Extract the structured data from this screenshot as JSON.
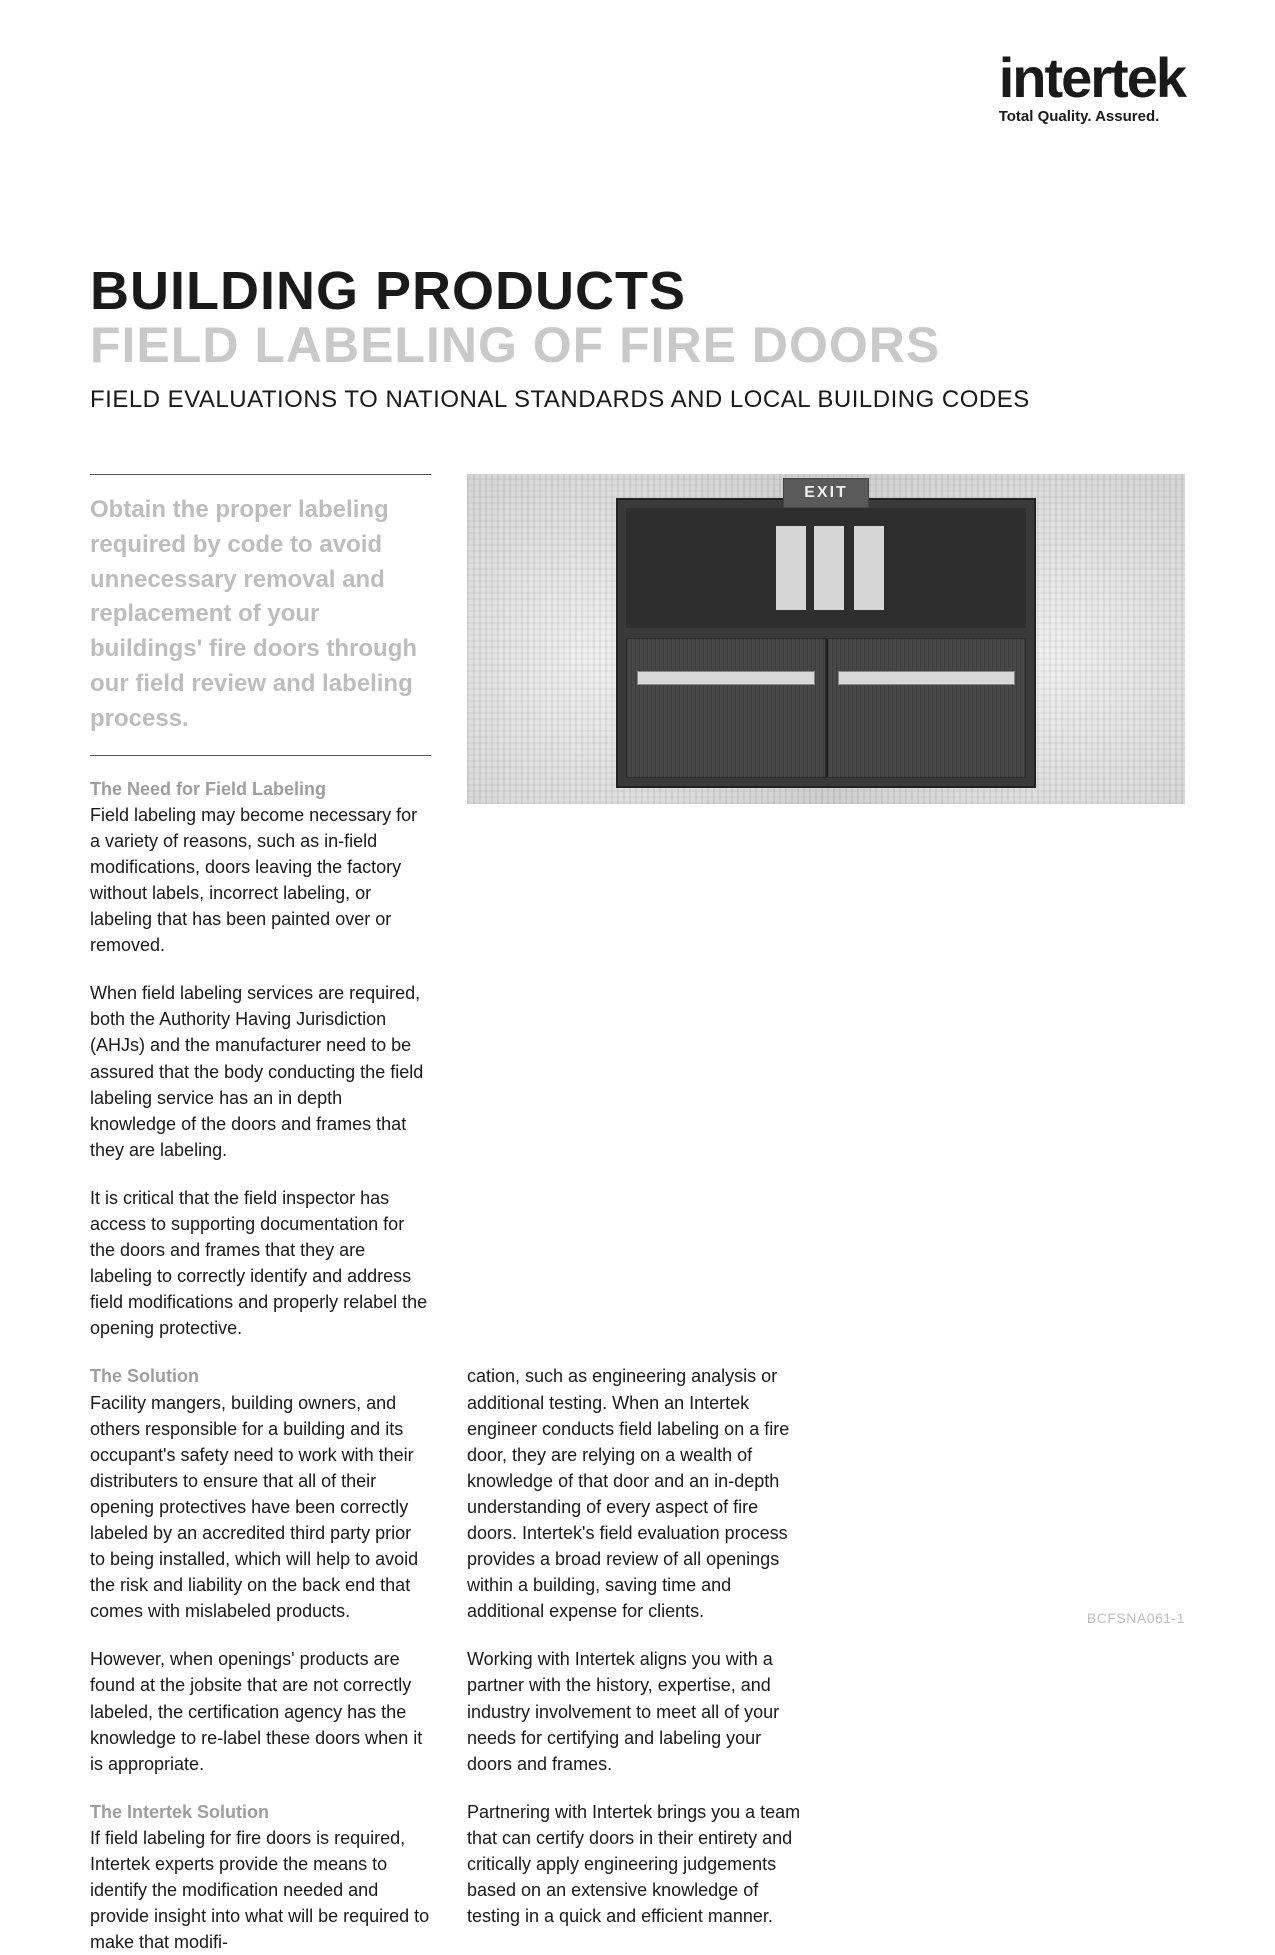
{
  "brand": {
    "name": "intertek",
    "tagline": "Total Quality. Assured."
  },
  "titles": {
    "line1": "BUILDING PRODUCTS",
    "line2": "FIELD LABELING OF FIRE DOORS",
    "subtitle": "FIELD EVALUATIONS TO NATIONAL STANDARDS AND LOCAL BUILDING CODES"
  },
  "callout": "Obtain the proper labeling required by code to avoid unnecessary removal and replacement of your buildings' fire doors through our field review and labeling process.",
  "hero": {
    "exit_label": "EXIT"
  },
  "sections": {
    "need": {
      "heading": "The Need for Field Labeling",
      "p1": "Field labeling may become necessary for a variety of reasons, such as in-field modifications, doors leaving the factory without labels, incorrect labeling, or labeling that has been painted over or removed.",
      "p2": "When field labeling services are required, both the Authority Having Jurisdiction (AHJs) and the manufacturer need to be assured that the body conducting the field labeling service has an in depth knowledge of the doors and frames that they are labeling.",
      "p3": "It is critical that the field inspector has access to supporting documentation for the doors and frames that they are labeling to correctly identify and address field modifications and properly relabel the opening protective."
    },
    "solution": {
      "heading": "The Solution",
      "p1": "Facility mangers, building owners, and others responsible for a building and its occupant's safety need to work with their distributers to ensure that all of their opening protectives have been correctly labeled by an accredited third party prior to being installed, which will help to avoid the risk and liability on the back end that comes with mislabeled products.",
      "p2": "However, when openings' products are found at the jobsite that are not correctly labeled, the certification agency has the knowledge to re-label these doors when it is appropriate."
    },
    "intertek": {
      "heading": "The Intertek Solution",
      "p1_col2": "If field labeling for fire doors is required, Intertek experts provide the means to identify the modification needed and provide insight into what will be required to make that modifi-",
      "p1_col3": "cation, such as engineering analysis or additional testing.  When an Intertek engineer conducts field labeling on a fire door, they are relying on a wealth of knowledge of that door and an in-depth understanding of every aspect of fire doors.  Intertek's field evaluation process provides a broad review of all openings within a building, saving time and additional expense for clients.",
      "p2": "Working with Intertek aligns you with a partner with the history, expertise, and industry involvement to meet all of your needs for certifying and labeling your doors and frames.",
      "p3": "Partnering with Intertek brings you a team that can certify doors in their entirety and critically apply engineering judgements based on an extensive knowledge of testing in a quick and efficient manner."
    }
  },
  "footer_code": "BCFSNA061-1",
  "colors": {
    "text": "#1a1a1a",
    "muted": "#bdbdbd",
    "heading_muted": "#9e9e9e",
    "hero_bg": "#cfcfcf",
    "door_dark": "#3a3a3a"
  },
  "typography": {
    "title1_pt": 54,
    "title2_pt": 50,
    "subtitle_pt": 24,
    "callout_pt": 24,
    "body_pt": 18
  }
}
